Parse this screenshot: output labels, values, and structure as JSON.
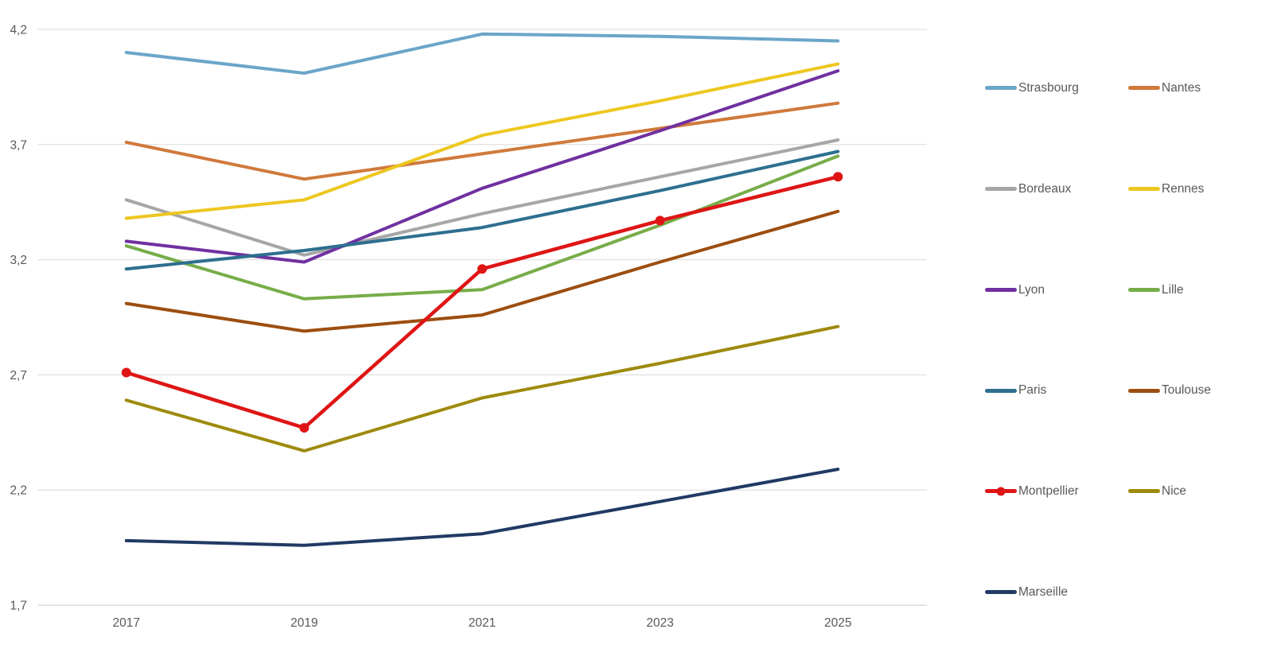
{
  "chart_data": {
    "type": "line",
    "title": "",
    "xlabel": "",
    "ylabel": "",
    "categories": [
      "2017",
      "2019",
      "2021",
      "2023",
      "2025"
    ],
    "series": [
      {
        "name": "Strasbourg",
        "color": "#6BA5C9",
        "marker": false,
        "values": [
          4.1,
          4.01,
          4.18,
          4.17,
          4.15
        ]
      },
      {
        "name": "Nantes",
        "color": "#D0793B",
        "marker": false,
        "values": [
          3.71,
          3.55,
          3.66,
          3.77,
          3.88
        ]
      },
      {
        "name": "Bordeaux",
        "color": "#A6A6A6",
        "marker": false,
        "values": [
          3.46,
          3.22,
          3.4,
          3.56,
          3.72
        ]
      },
      {
        "name": "Rennes",
        "color": "#EDC720",
        "marker": false,
        "values": [
          3.38,
          3.46,
          3.74,
          3.89,
          4.05
        ]
      },
      {
        "name": "Lyon",
        "color": "#7030A0",
        "marker": false,
        "values": [
          3.28,
          3.19,
          3.51,
          3.76,
          4.02
        ]
      },
      {
        "name": "Lille",
        "color": "#77AD49",
        "marker": false,
        "values": [
          3.26,
          3.03,
          3.07,
          3.35,
          3.65
        ]
      },
      {
        "name": "Paris",
        "color": "#2E6F8F",
        "marker": false,
        "values": [
          3.16,
          3.24,
          3.34,
          3.5,
          3.67
        ]
      },
      {
        "name": "Toulouse",
        "color": "#9C4E10",
        "marker": false,
        "values": [
          3.01,
          2.89,
          2.96,
          3.19,
          3.41
        ]
      },
      {
        "name": "Montpellier",
        "color": "#DF1515",
        "marker": true,
        "values": [
          2.71,
          2.47,
          3.16,
          3.37,
          3.56
        ]
      },
      {
        "name": "Nice",
        "color": "#9E8A0E",
        "marker": false,
        "values": [
          2.59,
          2.37,
          2.6,
          2.75,
          2.91
        ]
      },
      {
        "name": "Marseille",
        "color": "#203A64",
        "marker": false,
        "values": [
          1.98,
          1.96,
          2.01,
          2.15,
          2.29
        ]
      }
    ],
    "ylim": [
      1.7,
      4.2
    ],
    "ytick_step": 0.5,
    "ytick_labels": [
      "4,2",
      "3,7",
      "3,2",
      "2,7",
      "2,2",
      "1,7"
    ],
    "grid": true,
    "legend_position": "right",
    "legend_columns": 2
  },
  "colors": {
    "gridline": "#D9D9D9",
    "axis_line": "#C8C8C8",
    "axis_text": "#595959",
    "background": "#FFFFFF"
  }
}
